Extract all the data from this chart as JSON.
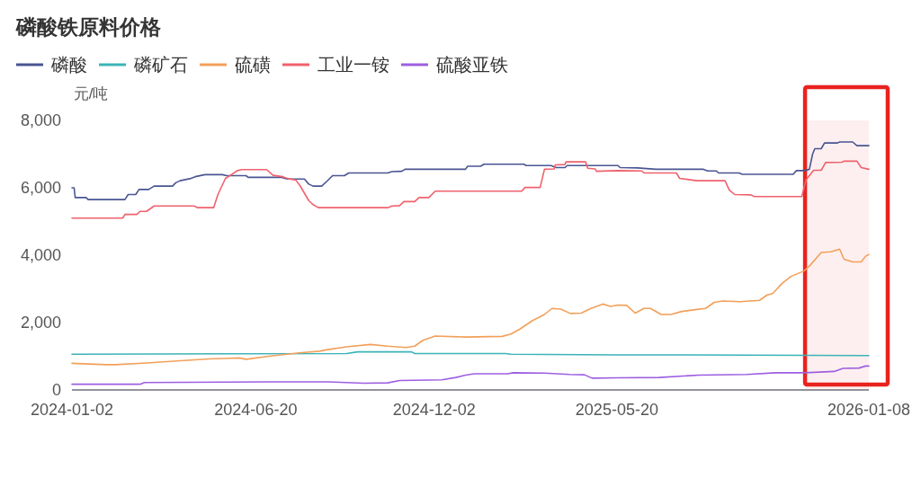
{
  "chart_data": {
    "type": "line",
    "title": "磷酸铁原料价格",
    "ylabel": "元/吨",
    "legend": "top left",
    "ylim": [
      0,
      8000
    ],
    "yticks": [
      0,
      {
        "value": 2000,
        "label": "2,000"
      },
      {
        "value": 4000,
        "label": "4,000"
      },
      {
        "value": 6000,
        "label": "6,000"
      },
      {
        "value": 8000,
        "label": "8,000"
      }
    ],
    "xlim": [
      "2024-01-02",
      "2026-01-08"
    ],
    "xticks": [
      "2024-01-02",
      "2024-06-20",
      "2024-12-02",
      "2025-05-20",
      "2026-01-08"
    ],
    "bands": [
      {
        "axis": "x",
        "from": "2025-11-10",
        "to": "2026-01-08",
        "color": "#e8231f"
      }
    ],
    "series": [
      {
        "name": "磷酸",
        "color": "#4a5592",
        "x": [
          "2024-01-02",
          "2024-01-04",
          "2024-01-05",
          "2024-01-15",
          "2024-01-17",
          "2024-02-20",
          "2024-02-23",
          "2024-03-01",
          "2024-03-04",
          "2024-03-13",
          "2024-03-18",
          "2024-04-04",
          "2024-04-07",
          "2024-04-11",
          "2024-04-20",
          "2024-04-25",
          "2024-05-04",
          "2024-05-20",
          "2024-05-24",
          "2024-06-11",
          "2024-06-13",
          "2024-07-14",
          "2024-07-19",
          "2024-08-04",
          "2024-08-08",
          "2024-08-12",
          "2024-08-20",
          "2024-08-25",
          "2024-08-30",
          "2024-09-10",
          "2024-09-14",
          "2024-10-20",
          "2024-10-24",
          "2024-11-02",
          "2024-11-05",
          "2024-12-31",
          "2025-01-02",
          "2025-01-14",
          "2025-01-17",
          "2025-02-23",
          "2025-02-25",
          "2025-03-20",
          "2025-03-25",
          "2025-04-02",
          "2025-04-04",
          "2025-05-21",
          "2025-05-23",
          "2025-06-08",
          "2025-06-25",
          "2025-08-08",
          "2025-08-12",
          "2025-08-20",
          "2025-08-22",
          "2025-09-10",
          "2025-09-13",
          "2025-10-30",
          "2025-11-02",
          "2025-11-10",
          "2025-11-14",
          "2025-11-17",
          "2025-11-19",
          "2025-11-25",
          "2025-11-28",
          "2025-12-10",
          "2025-12-12",
          "2025-12-24",
          "2025-12-28",
          "2026-01-08"
        ],
        "values": [
          6000,
          6000,
          5710,
          5710,
          5650,
          5650,
          5800,
          5800,
          5950,
          5950,
          6050,
          6050,
          6150,
          6210,
          6270,
          6330,
          6390,
          6390,
          6360,
          6360,
          6310,
          6310,
          6260,
          6260,
          6110,
          6050,
          6050,
          6200,
          6360,
          6360,
          6440,
          6440,
          6480,
          6490,
          6550,
          6550,
          6640,
          6640,
          6700,
          6700,
          6660,
          6660,
          6600,
          6600,
          6660,
          6660,
          6600,
          6590,
          6550,
          6550,
          6500,
          6500,
          6440,
          6440,
          6400,
          6400,
          6510,
          6510,
          6550,
          7000,
          7160,
          7160,
          7330,
          7330,
          7360,
          7360,
          7250,
          7250
        ]
      },
      {
        "name": "磷矿石",
        "color": "#3bb3b8",
        "x": [
          "2024-01-02",
          "2024-09-12",
          "2024-09-22",
          "2024-11-11",
          "2024-11-14",
          "2025-02-06",
          "2025-02-11",
          "2025-05-21",
          "2025-07-25",
          "2026-01-08"
        ],
        "values": [
          1060,
          1080,
          1130,
          1130,
          1080,
          1080,
          1060,
          1040,
          1040,
          1020
        ]
      },
      {
        "name": "硫磺",
        "color": "#f2a05a",
        "x": [
          "2024-01-02",
          "2024-02-03",
          "2024-02-11",
          "2024-03-11",
          "2024-04-08",
          "2024-05-07",
          "2024-06-05",
          "2024-06-11",
          "2024-07-02",
          "2024-07-30",
          "2024-08-18",
          "2024-08-24",
          "2024-09-12",
          "2024-10-04",
          "2024-10-20",
          "2024-11-06",
          "2024-11-14",
          "2024-11-22",
          "2024-12-03",
          "2024-12-31",
          "2025-02-03",
          "2025-02-11",
          "2025-02-19",
          "2025-03-03",
          "2025-03-14",
          "2025-03-21",
          "2025-03-29",
          "2025-04-07",
          "2025-04-17",
          "2025-04-26",
          "2025-05-07",
          "2025-05-14",
          "2025-05-21",
          "2025-05-29",
          "2025-06-06",
          "2025-06-14",
          "2025-06-20",
          "2025-06-30",
          "2025-07-09",
          "2025-07-19",
          "2025-08-02",
          "2025-08-10",
          "2025-08-18",
          "2025-08-26",
          "2025-09-11",
          "2025-09-29",
          "2025-10-06",
          "2025-10-11",
          "2025-10-20",
          "2025-10-28",
          "2025-11-09",
          "2025-11-15",
          "2025-11-25",
          "2025-12-04",
          "2025-12-12",
          "2025-12-16",
          "2025-12-24",
          "2026-01-01",
          "2026-01-05",
          "2026-01-08"
        ],
        "values": [
          790,
          750,
          750,
          800,
          860,
          920,
          950,
          910,
          1000,
          1100,
          1150,
          1190,
          1280,
          1350,
          1300,
          1260,
          1300,
          1480,
          1600,
          1570,
          1590,
          1660,
          1800,
          2060,
          2240,
          2420,
          2400,
          2270,
          2280,
          2420,
          2550,
          2480,
          2520,
          2510,
          2280,
          2420,
          2420,
          2240,
          2240,
          2330,
          2390,
          2420,
          2600,
          2640,
          2620,
          2660,
          2820,
          2860,
          3170,
          3370,
          3530,
          3710,
          4080,
          4100,
          4180,
          3880,
          3800,
          3800,
          3970,
          4020
        ]
      },
      {
        "name": "工业一铵",
        "color": "#f0616c",
        "x": [
          "2024-01-02",
          "2024-02-18",
          "2024-02-20",
          "2024-03-02",
          "2024-03-05",
          "2024-03-11",
          "2024-03-18",
          "2024-04-24",
          "2024-04-27",
          "2024-05-12",
          "2024-05-16",
          "2024-05-23",
          "2024-05-29",
          "2024-06-03",
          "2024-06-07",
          "2024-06-30",
          "2024-07-06",
          "2024-07-15",
          "2024-07-20",
          "2024-07-27",
          "2024-07-31",
          "2024-08-08",
          "2024-08-12",
          "2024-08-17",
          "2024-10-20",
          "2024-10-24",
          "2024-10-31",
          "2024-11-04",
          "2024-11-14",
          "2024-11-18",
          "2024-11-27",
          "2024-12-03",
          "2025-02-21",
          "2025-02-24",
          "2025-03-10",
          "2025-03-14",
          "2025-03-23",
          "2025-03-24",
          "2025-04-02",
          "2025-04-03",
          "2025-04-21",
          "2025-04-23",
          "2025-04-30",
          "2025-05-01",
          "2025-05-21",
          "2025-06-12",
          "2025-06-14",
          "2025-07-14",
          "2025-07-17",
          "2025-08-02",
          "2025-08-28",
          "2025-09-01",
          "2025-09-06",
          "2025-09-21",
          "2025-09-24",
          "2025-11-07",
          "2025-11-11",
          "2025-11-18",
          "2025-11-25",
          "2025-11-29",
          "2025-12-14",
          "2025-12-16",
          "2025-12-28",
          "2026-01-01",
          "2026-01-08"
        ],
        "values": [
          5100,
          5100,
          5210,
          5210,
          5300,
          5300,
          5460,
          5460,
          5410,
          5410,
          5800,
          6280,
          6400,
          6510,
          6540,
          6540,
          6370,
          6330,
          6270,
          6230,
          6060,
          5620,
          5500,
          5410,
          5410,
          5460,
          5470,
          5590,
          5590,
          5710,
          5710,
          5900,
          5900,
          6010,
          6010,
          6550,
          6560,
          6680,
          6690,
          6770,
          6770,
          6580,
          6560,
          6490,
          6510,
          6500,
          6440,
          6440,
          6280,
          6210,
          6210,
          5930,
          5800,
          5790,
          5740,
          5740,
          6240,
          6520,
          6520,
          6750,
          6760,
          6790,
          6790,
          6600,
          6550
        ]
      },
      {
        "name": "硫酸亚铁",
        "color": "#9d5fe0",
        "x": [
          "2024-01-02",
          "2024-03-05",
          "2024-03-09",
          "2024-07-02",
          "2024-08-26",
          "2024-09-28",
          "2024-10-20",
          "2024-10-31",
          "2024-12-09",
          "2024-12-22",
          "2024-12-31",
          "2025-01-08",
          "2025-02-08",
          "2025-02-13",
          "2025-03-14",
          "2025-04-06",
          "2025-04-20",
          "2025-04-27",
          "2025-05-21",
          "2025-06-28",
          "2025-08-04",
          "2025-09-17",
          "2025-10-14",
          "2025-11-10",
          "2025-12-07",
          "2025-12-15",
          "2025-12-30",
          "2026-01-05",
          "2026-01-08"
        ],
        "values": [
          170,
          170,
          220,
          240,
          240,
          200,
          210,
          280,
          300,
          370,
          440,
          480,
          480,
          510,
          500,
          460,
          450,
          350,
          360,
          370,
          440,
          460,
          510,
          510,
          550,
          640,
          650,
          710,
          710
        ]
      }
    ]
  }
}
